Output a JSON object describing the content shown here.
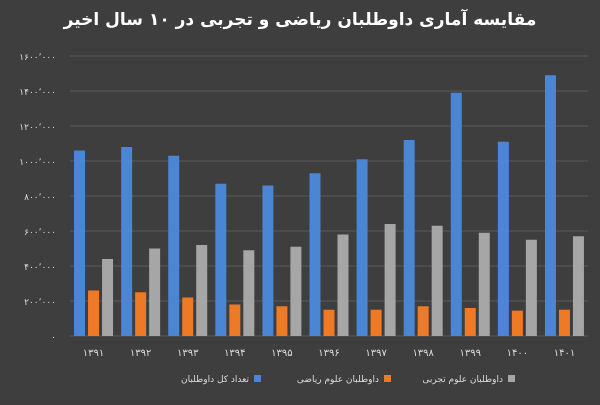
{
  "chart_data": {
    "type": "bar",
    "title": "مقایسه آماری داوطلبان ریاضی و تجربی در ۱۰ سال اخیر",
    "categories": [
      "۱۳۹۱",
      "۱۳۹۲",
      "۱۳۹۳",
      "۱۳۹۴",
      "۱۳۹۵",
      "۱۳۹۶",
      "۱۳۹۷",
      "۱۳۹۸",
      "۱۳۹۹",
      "۱۴۰۰",
      "۱۴۰۱"
    ],
    "series": [
      {
        "name": "تعداد کل داوطلبان",
        "color": "#4a86d4",
        "values": [
          1060000,
          1080000,
          1030000,
          870000,
          860000,
          930000,
          1010000,
          1120000,
          1390000,
          1110000,
          1490000
        ]
      },
      {
        "name": "داوطلبان علوم ریاضی",
        "color": "#ef7a25",
        "values": [
          260000,
          250000,
          220000,
          180000,
          170000,
          150000,
          150000,
          170000,
          160000,
          145000,
          150000
        ]
      },
      {
        "name": "داوطلبان علوم تجربی",
        "color": "#a6a6a6",
        "values": [
          440000,
          500000,
          520000,
          490000,
          510000,
          580000,
          640000,
          630000,
          590000,
          550000,
          570000
        ]
      }
    ],
    "ylim": [
      0,
      1600000
    ],
    "yticks": [
      0,
      200000,
      400000,
      600000,
      800000,
      1000000,
      1200000,
      1400000,
      1600000
    ],
    "ytick_labels": [
      "۰",
      "۲۰۰٬۰۰۰",
      "۴۰۰٬۰۰۰",
      "۶۰۰٬۰۰۰",
      "۸۰۰٬۰۰۰",
      "۱۰۰۰٬۰۰۰",
      "۱۲۰۰٬۰۰۰",
      "۱۴۰۰٬۰۰۰",
      "۱۶۰۰٬۰۰۰"
    ],
    "grid": true,
    "legend_position": "bottom"
  }
}
